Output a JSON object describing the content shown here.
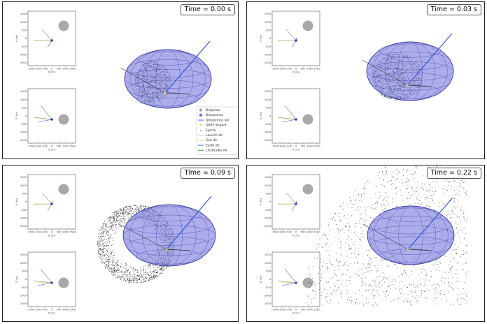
{
  "panels": [
    {
      "time_label": "Time = 0.00 s",
      "ejecta": "small"
    },
    {
      "time_label": "Time = 0.03 s",
      "ejecta": "medium"
    },
    {
      "time_label": "Time = 0.09 s",
      "ejecta": "large"
    },
    {
      "time_label": "Time = 0.22 s",
      "ejecta": "huge"
    }
  ],
  "axes": {
    "y_ticks": [
      "1500",
      "1000",
      "500",
      "0",
      "-500",
      "-1000",
      "-1500"
    ],
    "x_ticks": [
      "-1500",
      "-1000",
      "-500",
      "0",
      "500",
      "1000",
      "1500"
    ],
    "top_ylabel": "Y (m)",
    "top_xlabel": "X (m)",
    "bottom_ylabel": "Z (m)",
    "bottom_xlabel": "X (m)"
  },
  "legend": [
    {
      "label": "Didymos",
      "symbol": "circle",
      "color": "#a6a6a6"
    },
    {
      "label": "Dimorphos",
      "symbol": "circle",
      "color": "#6f6fd8"
    },
    {
      "label": "Dimorphos vel.",
      "symbol": "line",
      "color": "#4b4bd8"
    },
    {
      "label": "DART impact",
      "symbol": "star",
      "color": "#d8c24a"
    },
    {
      "label": "Ejecta",
      "symbol": "dot",
      "color": "#222222"
    },
    {
      "label": "Launch dir.",
      "symbol": "line",
      "color": "#bbbbbb"
    },
    {
      "label": "Sun dir.",
      "symbol": "line",
      "color": "#d8d84a"
    },
    {
      "label": "Earth dir.",
      "symbol": "line",
      "color": "#2a4fd0"
    },
    {
      "label": "LICIACube dir.",
      "symbol": "line",
      "color": "#2a8a3a"
    }
  ],
  "colors": {
    "ellipsoid_fill": "#7a7ae0",
    "ellipsoid_edge": "#2d2d9a",
    "didymos": "#a9a9a9",
    "dimorphos": "#3b3bb8",
    "sun": "#d8d84a",
    "earth": "#2a4fd0",
    "liciacube": "#2a8a3a",
    "launch": "#9a9a9a",
    "ejecta": "#111111"
  }
}
